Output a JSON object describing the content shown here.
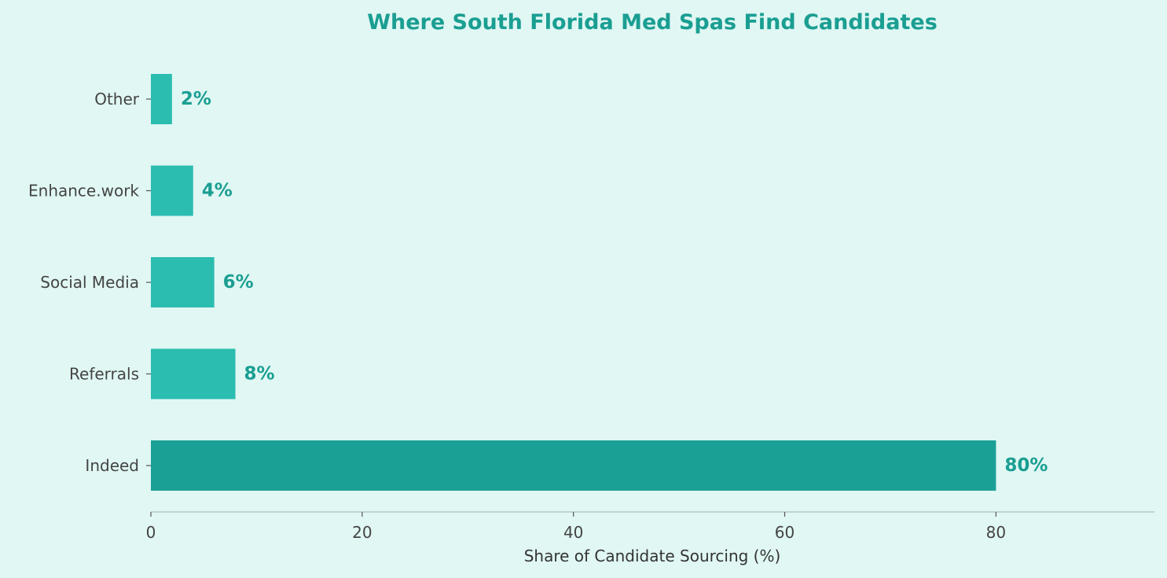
{
  "chart_data": {
    "type": "bar",
    "orientation": "horizontal",
    "title": "Where South Florida Med Spas Find Candidates",
    "xlabel": "Share of Candidate Sourcing (%)",
    "ylabel": "",
    "categories": [
      "Indeed",
      "Referrals",
      "Social Media",
      "Enhance.work",
      "Other"
    ],
    "values": [
      80,
      8,
      6,
      4,
      2
    ],
    "value_labels": [
      "80%",
      "8%",
      "6%",
      "4%",
      "2%"
    ],
    "xlim": [
      0,
      95
    ],
    "xticks": [
      0,
      20,
      40,
      60,
      80
    ],
    "xtick_labels": [
      "0",
      "20",
      "40",
      "60",
      "80"
    ],
    "grid": false,
    "colors": {
      "highlight_bar": "#1ba096",
      "bar": "#2bbdb0",
      "title": "#1a9e92",
      "value_label": "#1a9e92",
      "axis_line": "#b8c9c5",
      "background": "#e0f7f3"
    }
  }
}
